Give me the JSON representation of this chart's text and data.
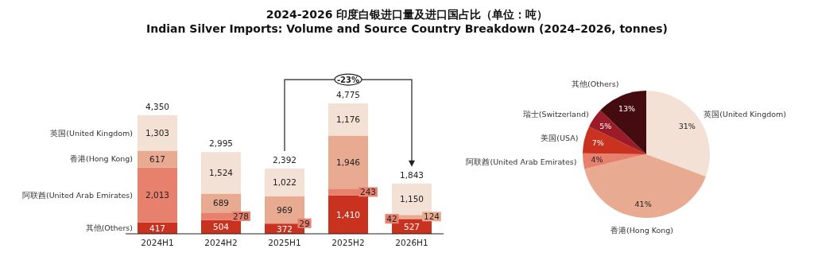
{
  "chart_data": [
    {
      "type": "bar",
      "title": "2024-2026 印度白银进口量及进口国占比（单位：吨）",
      "subtitle": "Indian Silver Imports: Volume and Source Country Breakdown (2024–2026, tonnes)",
      "categories": [
        "2024H1",
        "2024H2",
        "2025H1",
        "2025H2",
        "2026H1"
      ],
      "stacked": true,
      "totals": [
        "4,350",
        "2,995",
        "2,392",
        "4,775",
        "1,843"
      ],
      "annotations": [
        "-23%"
      ],
      "series": [
        {
          "name": "其他(Others)",
          "color": "#c8321e",
          "values": [
            417,
            504,
            372,
            1410,
            527
          ],
          "value_labels": [
            "417",
            "504",
            "372",
            "1,410",
            "527"
          ]
        },
        {
          "name": "阿联酋(United Arab Emirates)",
          "color": "#e8806e",
          "values": [
            2013,
            278,
            29,
            243,
            42
          ],
          "value_labels": [
            "2,013",
            "278",
            "29",
            "243",
            "42"
          ]
        },
        {
          "name": "香港(Hong Kong)",
          "color": "#e8aa90",
          "values": [
            617,
            689,
            969,
            1946,
            124
          ],
          "value_labels": [
            "617",
            "689",
            "969",
            "1,946",
            "124"
          ]
        },
        {
          "name": "英国(United Kingdom)",
          "color": "#f2e1d4",
          "values": [
            1303,
            1524,
            1022,
            1176,
            1150
          ],
          "value_labels": [
            "1,303",
            "1,524",
            "1,022",
            "1,176",
            "1,150"
          ]
        }
      ]
    },
    {
      "type": "pie",
      "categories": [
        "英国(United Kingdom)",
        "香港(Hong Kong)",
        "阿联酋(United Arab Emirates)",
        "美国(USA)",
        "瑞士(Switzerland)",
        "其他(Others)"
      ],
      "values": [
        31,
        41,
        4,
        7,
        5,
        13
      ],
      "value_labels": [
        "31%",
        "41%",
        "4%",
        "7%",
        "5%",
        "13%"
      ],
      "colors": [
        "#f2e1d4",
        "#e8aa90",
        "#e8806e",
        "#c8321e",
        "#9b1c28",
        "#450c10"
      ]
    }
  ]
}
